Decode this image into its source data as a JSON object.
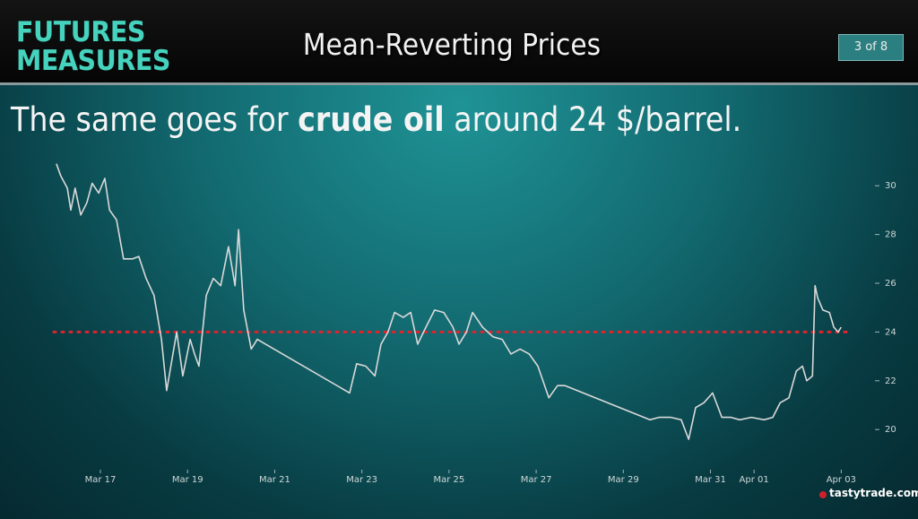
{
  "header": {
    "logo": [
      "FUTURES",
      "MEASURES"
    ],
    "title": "Mean-Reverting Prices",
    "page_label": "3 of 8"
  },
  "headline": [
    {
      "text": "The same goes for ",
      "bold": false
    },
    {
      "text": "crude oil",
      "bold": true
    },
    {
      "text": " around 24 $/barrel.",
      "bold": false
    }
  ],
  "chart_data": {
    "type": "line",
    "color": "#d9d9d9",
    "x": [
      -1.01,
      -0.91,
      -0.76,
      -0.68,
      -0.58,
      -0.45,
      -0.31,
      -0.19,
      -0.04,
      0.1,
      0.21,
      0.37,
      0.53,
      0.74,
      0.88,
      1.05,
      1.23,
      1.4,
      1.52,
      1.75,
      1.89,
      2.06,
      2.16,
      2.26,
      2.43,
      2.59,
      2.76,
      2.94,
      3.09,
      3.17,
      3.29,
      3.46,
      3.6,
      5.72,
      5.88,
      6.09,
      6.3,
      6.44,
      6.6,
      6.75,
      6.95,
      7.12,
      7.28,
      7.47,
      7.67,
      7.88,
      8.09,
      8.23,
      8.4,
      8.54,
      8.77,
      9.01,
      9.22,
      9.42,
      9.63,
      9.84,
      10.04,
      10.29,
      10.49,
      10.66,
      12.61,
      12.82,
      13.09,
      13.33,
      13.5,
      13.66,
      13.85,
      14.05,
      14.26,
      14.47,
      14.67,
      14.94,
      15.23,
      15.43,
      15.6,
      15.8,
      15.97,
      16.11,
      16.21,
      16.34,
      16.4,
      16.46,
      16.58,
      16.73,
      16.83,
      16.93,
      17.0
    ],
    "values": [
      30.9,
      30.4,
      29.9,
      29.0,
      29.9,
      28.8,
      29.3,
      30.1,
      29.7,
      30.3,
      29.0,
      28.6,
      27.0,
      27.0,
      27.1,
      26.2,
      25.5,
      23.7,
      21.6,
      24.0,
      22.2,
      23.7,
      23.1,
      22.6,
      25.5,
      26.2,
      25.9,
      27.5,
      25.9,
      28.2,
      24.9,
      23.3,
      23.7,
      21.5,
      22.7,
      22.6,
      22.2,
      23.5,
      24.0,
      24.8,
      24.6,
      24.8,
      23.5,
      24.2,
      24.9,
      24.8,
      24.2,
      23.5,
      24.0,
      24.8,
      24.2,
      23.8,
      23.7,
      23.1,
      23.3,
      23.1,
      22.6,
      21.3,
      21.8,
      21.8,
      20.4,
      20.5,
      20.5,
      20.4,
      19.6,
      20.9,
      21.1,
      21.5,
      20.5,
      20.5,
      20.4,
      20.5,
      20.4,
      20.5,
      21.1,
      21.3,
      22.4,
      22.6,
      22.0,
      22.2,
      25.9,
      25.4,
      24.9,
      24.8,
      24.2,
      24.0,
      24.2
    ],
    "reference": {
      "value": 24,
      "color": "#e3222c"
    },
    "xlim": [
      -1.07,
      17.24
    ],
    "xticks": [
      {
        "value": 0,
        "label": "Mar 17"
      },
      {
        "value": 2,
        "label": "Mar 19"
      },
      {
        "value": 4,
        "label": "Mar 21"
      },
      {
        "value": 6,
        "label": "Mar 23"
      },
      {
        "value": 8,
        "label": "Mar 25"
      },
      {
        "value": 10,
        "label": "Mar 27"
      },
      {
        "value": 12,
        "label": "Mar 29"
      },
      {
        "value": 14,
        "label": "Mar 31"
      },
      {
        "value": 15,
        "label": "Apr 01"
      },
      {
        "value": 17,
        "label": "Apr 03"
      }
    ],
    "ylim": [
      18.5,
      31
    ],
    "yticks": [
      20,
      22,
      24,
      26,
      28,
      30
    ]
  },
  "footer": {
    "brand": "tastytrade.com"
  }
}
